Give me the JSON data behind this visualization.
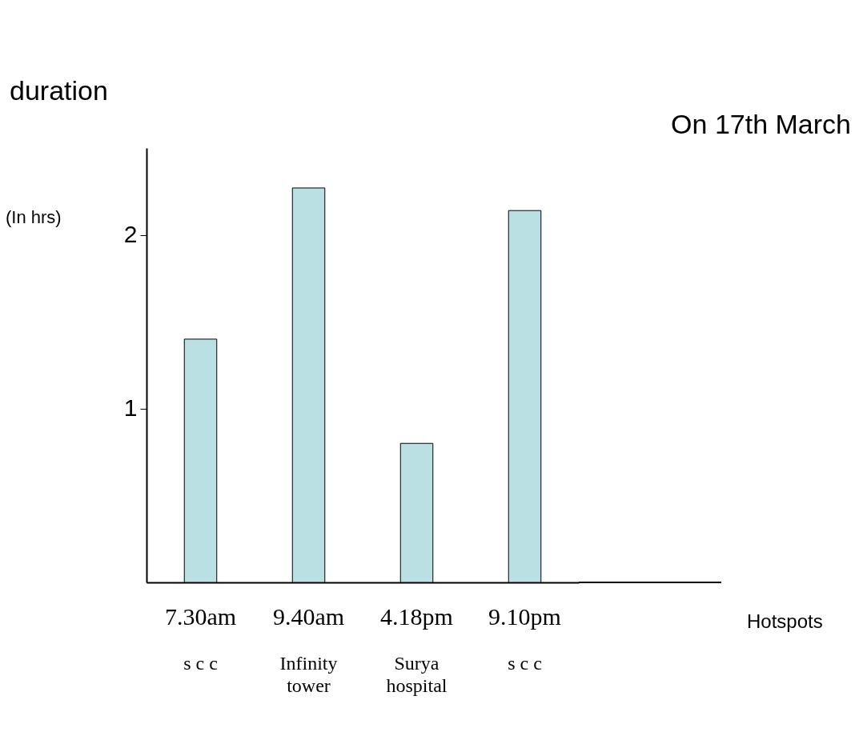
{
  "chart_data": {
    "type": "bar",
    "title": "On 17th March",
    "ylabel": "duration",
    "categories": [
      "7.30am",
      "9.40am",
      "4.18pm",
      "9.10pm"
    ],
    "values": [
      1.4,
      2.27,
      0.8,
      2.14
    ],
    "color": "#bbe0e3",
    "ylim": [
      0,
      2.5
    ],
    "yticks": [
      1,
      2
    ],
    "grid": false,
    "annotations": [
      "(In hrs)",
      "s c c",
      "Infinity\ntower",
      "Surya\nhospital",
      "s c c",
      "Hotspots"
    ]
  }
}
